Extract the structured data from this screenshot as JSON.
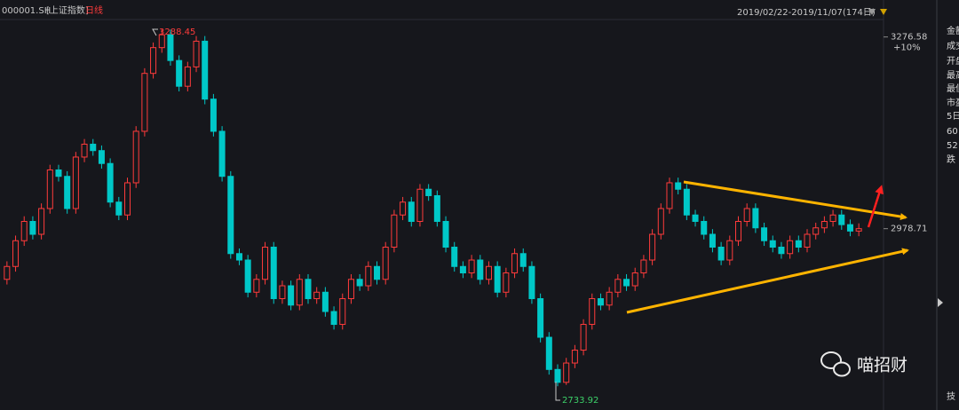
{
  "chart_data": {
    "type": "candlestick",
    "symbol": "000001.SH",
    "name": "[上证指数]",
    "period": "日线",
    "range": "2019/02/22-2019/11/07(174日)",
    "annotations": [
      "3288.45",
      "2733.92",
      "+10%"
    ],
    "watermark": "喵招财",
    "side_labels": [
      "金额",
      "成交",
      "开盘",
      "最高",
      "最低",
      "市盈",
      "5日",
      "60",
      "52",
      "跌",
      "技"
    ],
    "up_color": "#ff3b3b",
    "down_color": "#00c8c8",
    "ylim": [
      2697,
      3334
    ],
    "yticks": [
      2978.71,
      3276.58
    ],
    "open": [
      2900,
      2920,
      2960,
      2990,
      2970,
      3010,
      3070,
      3060,
      3010,
      3090,
      3110,
      3100,
      3080,
      3020,
      3000,
      3050,
      3130,
      3220,
      3260,
      3280,
      3240,
      3200,
      3230,
      3270,
      3180,
      3130,
      3060,
      2940,
      2930,
      2880,
      2900,
      2950,
      2870,
      2890,
      2860,
      2900,
      2870,
      2880,
      2850,
      2830,
      2870,
      2900,
      2890,
      2920,
      2900,
      2950,
      3000,
      3020,
      2990,
      3040,
      3030,
      2990,
      2950,
      2920,
      2910,
      2930,
      2900,
      2920,
      2880,
      2910,
      2940,
      2920,
      2870,
      2810,
      2760,
      2740,
      2770,
      2790,
      2830,
      2870,
      2860,
      2880,
      2900,
      2890,
      2910,
      2930,
      2970,
      3010,
      3050,
      3040,
      3000,
      2990,
      2970,
      2950,
      2930,
      2960,
      2990,
      3010,
      2980,
      2960,
      2950,
      2940,
      2960,
      2950,
      2970,
      2980,
      2990,
      3000,
      2985,
      2975
    ],
    "high": [
      2928,
      2968,
      2998,
      2998,
      3018,
      3078,
      3078,
      3068,
      3098,
      3118,
      3118,
      3108,
      3088,
      3028,
      3058,
      3138,
      3228,
      3268,
      3288.45,
      3288,
      3248,
      3238,
      3278,
      3278,
      3188,
      3138,
      3068,
      2948,
      2938,
      2908,
      2958,
      2958,
      2898,
      2898,
      2908,
      2908,
      2888,
      2888,
      2858,
      2878,
      2908,
      2908,
      2928,
      2928,
      2958,
      3008,
      3028,
      3028,
      3048,
      3048,
      3038,
      2998,
      2958,
      2928,
      2938,
      2938,
      2928,
      2928,
      2918,
      2948,
      2948,
      2928,
      2878,
      2818,
      2768,
      2778,
      2798,
      2838,
      2878,
      2878,
      2888,
      2908,
      2908,
      2918,
      2938,
      2978,
      3018,
      3058,
      3058,
      3048,
      3008,
      2998,
      2978,
      2958,
      2968,
      2998,
      3018,
      3018,
      2988,
      2968,
      2958,
      2968,
      2968,
      2978,
      2988,
      2998,
      3008,
      3008,
      2993,
      2987
    ],
    "low": [
      2892,
      2912,
      2952,
      2962,
      2962,
      3002,
      3052,
      3002,
      3002,
      3082,
      3092,
      3072,
      3012,
      2992,
      2992,
      3042,
      3122,
      3212,
      3252,
      3232,
      3192,
      3192,
      3222,
      3172,
      3122,
      3052,
      2932,
      2922,
      2872,
      2872,
      2892,
      2862,
      2862,
      2852,
      2852,
      2862,
      2862,
      2842,
      2822,
      2822,
      2862,
      2882,
      2882,
      2892,
      2892,
      2942,
      2992,
      2982,
      2982,
      3022,
      2982,
      2942,
      2912,
      2902,
      2902,
      2892,
      2892,
      2872,
      2872,
      2902,
      2912,
      2862,
      2802,
      2752,
      2733.92,
      2736,
      2762,
      2782,
      2822,
      2852,
      2852,
      2872,
      2882,
      2882,
      2902,
      2922,
      2962,
      3002,
      3032,
      2992,
      2982,
      2962,
      2942,
      2922,
      2922,
      2952,
      2982,
      2972,
      2952,
      2942,
      2932,
      2932,
      2942,
      2942,
      2962,
      2972,
      2982,
      2977,
      2967,
      2967
    ],
    "close": [
      2920,
      2960,
      2990,
      2970,
      3010,
      3070,
      3060,
      3010,
      3090,
      3110,
      3100,
      3080,
      3020,
      3000,
      3050,
      3130,
      3220,
      3260,
      3280,
      3240,
      3200,
      3230,
      3270,
      3180,
      3130,
      3060,
      2940,
      2930,
      2880,
      2900,
      2950,
      2870,
      2890,
      2860,
      2900,
      2870,
      2880,
      2850,
      2830,
      2870,
      2900,
      2890,
      2920,
      2900,
      2950,
      3000,
      3020,
      2990,
      3040,
      3030,
      2990,
      2950,
      2920,
      2910,
      2930,
      2900,
      2920,
      2880,
      2910,
      2940,
      2920,
      2870,
      2810,
      2760,
      2740,
      2770,
      2790,
      2830,
      2870,
      2860,
      2880,
      2900,
      2890,
      2910,
      2930,
      2970,
      3010,
      3050,
      3040,
      3000,
      2990,
      2970,
      2950,
      2930,
      2960,
      2990,
      3010,
      2980,
      2960,
      2950,
      2940,
      2960,
      2950,
      2970,
      2980,
      2990,
      3000,
      2985,
      2975,
      2978.71
    ]
  }
}
